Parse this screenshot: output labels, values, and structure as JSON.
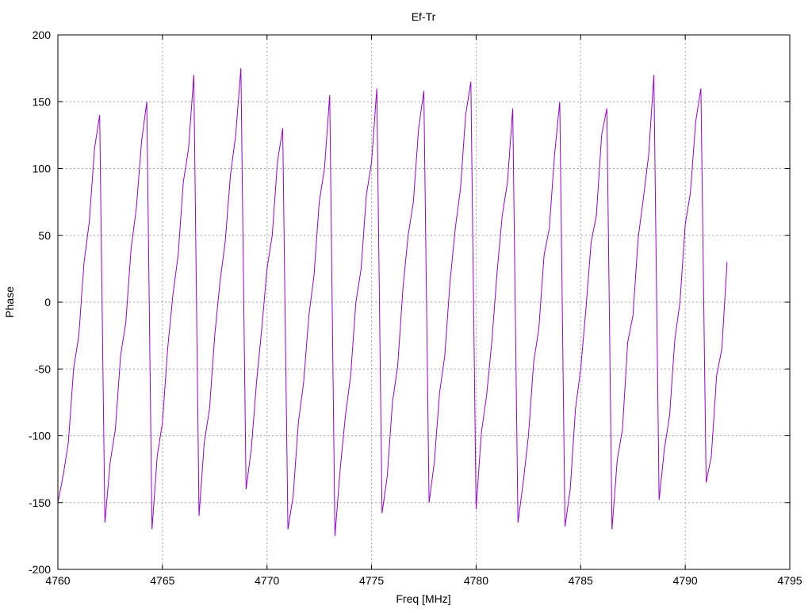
{
  "chart_data": {
    "type": "line",
    "title": "Ef-Tr",
    "xlabel": "Freq [MHz]",
    "ylabel": "Phase",
    "xlim": [
      4760,
      4795
    ],
    "ylim": [
      -200,
      200
    ],
    "xticks": [
      4760,
      4765,
      4770,
      4775,
      4780,
      4785,
      4790,
      4795
    ],
    "yticks": [
      -200,
      -150,
      -100,
      -50,
      0,
      50,
      100,
      150,
      200
    ],
    "grid": true,
    "legend": "none",
    "series": [
      {
        "name": "Ef-Tr",
        "color": "#9400d3",
        "x_start": 4760,
        "x_step": 0.25,
        "values": [
          -150,
          -130,
          -105,
          -50,
          -25,
          30,
          60,
          115,
          140,
          -165,
          -120,
          -95,
          -40,
          -15,
          40,
          70,
          120,
          150,
          -170,
          -115,
          -90,
          -35,
          5,
          35,
          90,
          115,
          170,
          -160,
          -105,
          -80,
          -25,
          15,
          45,
          95,
          125,
          175,
          -140,
          -110,
          -60,
          -20,
          25,
          50,
          105,
          130,
          -170,
          -145,
          -90,
          -60,
          -10,
          20,
          75,
          100,
          155,
          -175,
          -125,
          -85,
          -55,
          0,
          25,
          80,
          105,
          160,
          -158,
          -130,
          -75,
          -48,
          10,
          50,
          75,
          130,
          158,
          -150,
          -120,
          -68,
          -40,
          15,
          55,
          85,
          140,
          165,
          -155,
          -98,
          -70,
          -30,
          22,
          65,
          90,
          145,
          -165,
          -135,
          -100,
          -45,
          -20,
          35,
          55,
          110,
          150,
          -168,
          -140,
          -80,
          -50,
          -5,
          45,
          65,
          125,
          145,
          -170,
          -118,
          -95,
          -30,
          -10,
          48,
          78,
          110,
          170,
          -148,
          -110,
          -85,
          -28,
          0,
          58,
          82,
          135,
          160,
          -135,
          -115,
          -55,
          -35,
          30
        ]
      }
    ]
  }
}
